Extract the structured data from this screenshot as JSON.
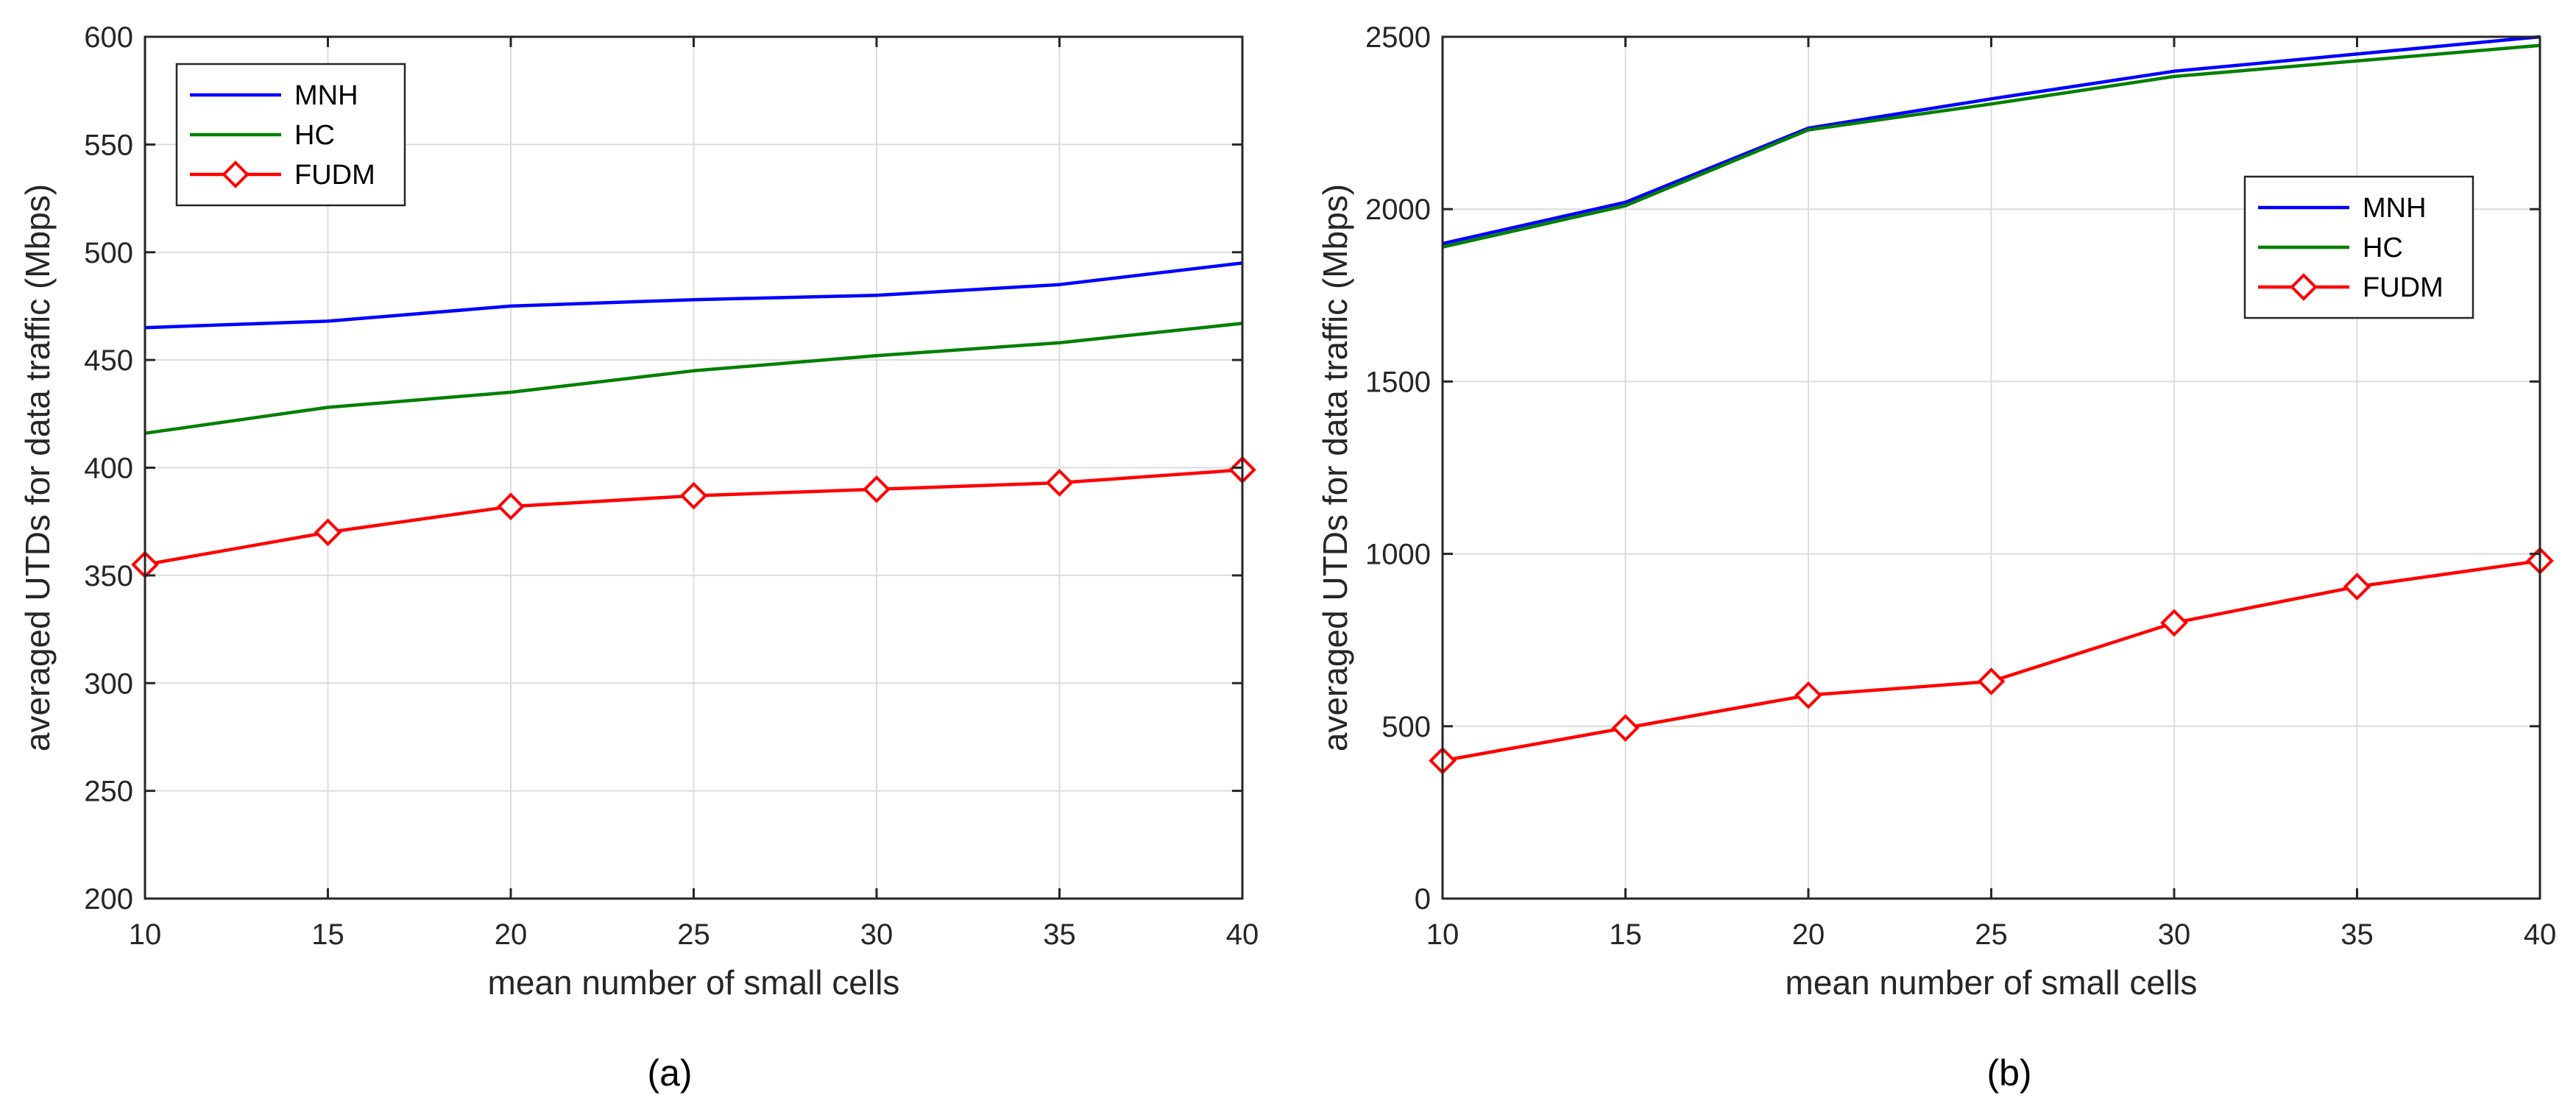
{
  "chart_data": [
    {
      "type": "line",
      "caption": "(a)",
      "xlabel": "mean number of small cells",
      "ylabel": "averaged UTDs for data traffic (Mbps)",
      "xlim": [
        10,
        40
      ],
      "ylim": [
        200,
        600
      ],
      "grid": true,
      "legend_position": "top-left",
      "xticks": [
        10,
        15,
        20,
        25,
        30,
        35,
        40
      ],
      "yticks": [
        200,
        250,
        300,
        350,
        400,
        450,
        500,
        550,
        600
      ],
      "x": [
        10,
        15,
        20,
        25,
        30,
        35,
        40
      ],
      "series": [
        {
          "name": "MNH",
          "color": "#0000ff",
          "marker": "none",
          "values": [
            465,
            468,
            475,
            478,
            480,
            485,
            495
          ]
        },
        {
          "name": "HC",
          "color": "#008000",
          "marker": "none",
          "values": [
            416,
            428,
            435,
            445,
            452,
            458,
            467
          ]
        },
        {
          "name": "FUDM",
          "color": "#ff0000",
          "marker": "diamond",
          "values": [
            355,
            370,
            382,
            387,
            390,
            393,
            399
          ]
        }
      ]
    },
    {
      "type": "line",
      "caption": "(b)",
      "xlabel": "mean number of small cells",
      "ylabel": "averaged UTDs for data traffic (Mbps)",
      "xlim": [
        10,
        40
      ],
      "ylim": [
        0,
        2500
      ],
      "grid": true,
      "legend_position": "top-right",
      "xticks": [
        10,
        15,
        20,
        25,
        30,
        35,
        40
      ],
      "yticks": [
        0,
        500,
        1000,
        1500,
        2000,
        2500
      ],
      "x": [
        10,
        15,
        20,
        25,
        30,
        35,
        40
      ],
      "series": [
        {
          "name": "MNH",
          "color": "#0000ff",
          "marker": "none",
          "values": [
            1900,
            2020,
            2235,
            2320,
            2400,
            2450,
            2500
          ]
        },
        {
          "name": "HC",
          "color": "#008000",
          "marker": "none",
          "values": [
            1890,
            2010,
            2230,
            2305,
            2385,
            2430,
            2475
          ]
        },
        {
          "name": "FUDM",
          "color": "#ff0000",
          "marker": "diamond",
          "values": [
            400,
            495,
            590,
            630,
            800,
            905,
            980
          ]
        }
      ]
    }
  ]
}
